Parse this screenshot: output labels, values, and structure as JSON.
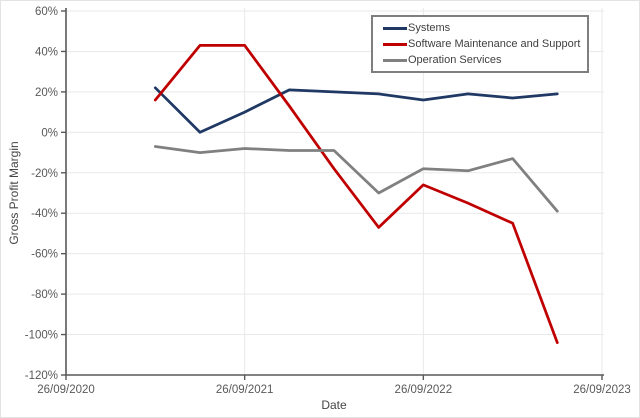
{
  "chart_data": {
    "type": "line",
    "title": "",
    "xlabel": "Date",
    "ylabel": "Gross Profit Margin",
    "x_axis": {
      "unit": "years after 26/09/2020",
      "tick_positions": [
        0,
        1,
        2,
        3
      ],
      "tick_labels": [
        "26/09/2020",
        "26/09/2021",
        "26/09/2022",
        "26/09/2023"
      ]
    },
    "y_axis": {
      "ticks": [
        60,
        40,
        20,
        0,
        -20,
        -40,
        -60,
        -80,
        -100,
        -120
      ],
      "tick_suffix": "%"
    },
    "xlim": [
      0,
      3
    ],
    "ylim": [
      -120,
      60
    ],
    "grid": true,
    "legend_position": "top-right",
    "x": [
      0.5,
      0.75,
      1.0,
      1.25,
      1.5,
      1.75,
      2.0,
      2.25,
      2.5,
      2.75
    ],
    "series": [
      {
        "name": "Systems",
        "color": "#1f3864",
        "values": [
          22,
          0,
          10,
          21,
          20,
          19,
          16,
          19,
          17,
          19
        ]
      },
      {
        "name": "Software Maintenance and Support",
        "color": "#c00000",
        "values": [
          16,
          43,
          43,
          13,
          -18,
          -47,
          -26,
          -35,
          -45,
          -104
        ]
      },
      {
        "name": "Operation Services",
        "color": "#808080",
        "values": [
          -7,
          -10,
          -8,
          -9,
          -9,
          -30,
          -18,
          -19,
          -13,
          -39
        ]
      }
    ]
  },
  "style": {
    "grid_color": "#e9e9e9",
    "axis_color": "#595959",
    "tick_label_color": "#595959",
    "axis_title_color": "#454545",
    "legend_border_color": "#7f7f7f",
    "background": "#ffffff"
  }
}
